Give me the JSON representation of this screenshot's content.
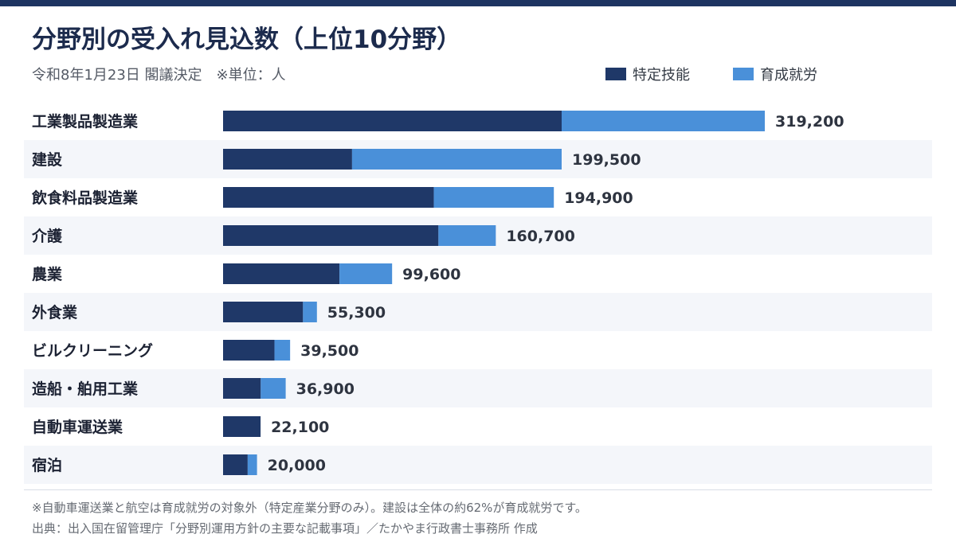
{
  "title": "分野別の受入れ見込数（上位10分野）",
  "subtitle": "令和8年1月23日 閣議決定　※単位：人",
  "legend": [
    {
      "label": "特定技能",
      "color": "#1f3868"
    },
    {
      "label": "育成就労",
      "color": "#4a90d9"
    }
  ],
  "chart_data": {
    "type": "bar",
    "orientation": "horizontal",
    "stacked": true,
    "categories": [
      "工業製品製造業",
      "建設",
      "飲食料品製造業",
      "介護",
      "農業",
      "外食業",
      "ビルクリーニング",
      "造船・舶用工業",
      "自動車運送業",
      "宿泊"
    ],
    "series": [
      {
        "name": "特定技能",
        "values": [
          199500,
          76000,
          124200,
          126900,
          68600,
          47100,
          30300,
          22200,
          22100,
          14500
        ]
      },
      {
        "name": "育成就労",
        "values": [
          119700,
          123500,
          70700,
          33800,
          31000,
          8200,
          9200,
          14700,
          0,
          5500
        ]
      }
    ],
    "totals": [
      319200,
      199500,
      194900,
      160700,
      99600,
      55300,
      39500,
      36900,
      22100,
      20000
    ],
    "total_labels": [
      "319,200",
      "199,500",
      "194,900",
      "160,700",
      "99,600",
      "55,300",
      "39,500",
      "36,900",
      "22,100",
      "20,000"
    ],
    "xlim": [
      0,
      360000
    ],
    "grid": false,
    "legend_position": "top-right"
  },
  "notes": [
    "※自動車運送業と航空は育成就労の対象外（特定産業分野のみ）。建設は全体の約62%が育成就労です。",
    "出典：出入国在留管理庁「分野別運用方針の主要な記載事項」／たかやま行政書士事務所 作成"
  ],
  "colors": {
    "row_stripe": "#f4f6fa",
    "category_text": "#1c2233",
    "value_text": "#2e3440"
  }
}
